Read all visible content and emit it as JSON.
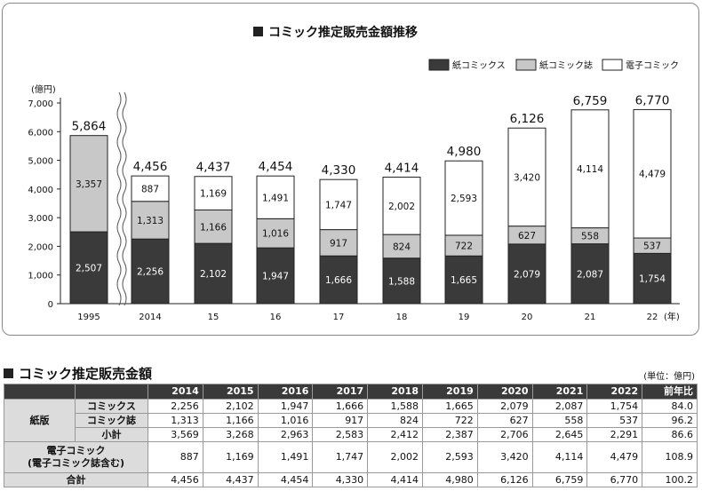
{
  "chart_data": {
    "type": "bar",
    "title": "コミック推定販売金額推移",
    "ylabel": "(億円)",
    "xlabel": "(年)",
    "ylim": [
      0,
      7000
    ],
    "yticks": [
      "0",
      "1,000",
      "2,000",
      "3,000",
      "4,000",
      "5,000",
      "6,000",
      "7,000"
    ],
    "categories": [
      "1995",
      "2014",
      "15",
      "16",
      "17",
      "18",
      "19",
      "20",
      "21",
      "22"
    ],
    "series": [
      {
        "name": "紙コミックス",
        "color": "#3a3a3a",
        "values": [
          2507,
          2256,
          2102,
          1947,
          1666,
          1588,
          1665,
          2079,
          2087,
          1754
        ],
        "labels": [
          "2,507",
          "2,256",
          "2,102",
          "1,947",
          "1,666",
          "1,588",
          "1,665",
          "2,079",
          "2,087",
          "1,754"
        ]
      },
      {
        "name": "紙コミック誌",
        "color": "#c8c8c8",
        "values": [
          3357,
          1313,
          1166,
          1016,
          917,
          824,
          722,
          627,
          558,
          537
        ],
        "labels": [
          "3,357",
          "1,313",
          "1,166",
          "1,016",
          "917",
          "824",
          "722",
          "627",
          "558",
          "537"
        ]
      },
      {
        "name": "電子コミック",
        "color": "#ffffff",
        "values": [
          0,
          887,
          1169,
          1491,
          1747,
          2002,
          2593,
          3420,
          4114,
          4479
        ],
        "labels": [
          "",
          "887",
          "1,169",
          "1,491",
          "1,747",
          "2,002",
          "2,593",
          "3,420",
          "4,114",
          "4,479"
        ]
      }
    ],
    "totals": [
      5864,
      4456,
      4437,
      4454,
      4330,
      4414,
      4980,
      6126,
      6759,
      6770
    ],
    "total_labels": [
      "5,864",
      "4,456",
      "4,437",
      "4,454",
      "4,330",
      "4,414",
      "4,980",
      "6,126",
      "6,759",
      "6,770"
    ],
    "legend_position": "top-right",
    "grid": false
  },
  "table": {
    "title": "コミック推定販売金額",
    "unit_note": "(単位：億円)",
    "headers": [
      "2014",
      "2015",
      "2016",
      "2017",
      "2018",
      "2019",
      "2020",
      "2021",
      "2022",
      "前年比"
    ],
    "group_label": "紙版",
    "rows": [
      {
        "label": "コミックス",
        "values": [
          "2,256",
          "2,102",
          "1,947",
          "1,666",
          "1,588",
          "1,665",
          "2,079",
          "2,087",
          "1,754",
          "84.0"
        ]
      },
      {
        "label": "コミック誌",
        "values": [
          "1,313",
          "1,166",
          "1,016",
          "917",
          "824",
          "722",
          "627",
          "558",
          "537",
          "96.2"
        ]
      },
      {
        "label": "小計",
        "values": [
          "3,569",
          "3,268",
          "2,963",
          "2,583",
          "2,412",
          "2,387",
          "2,706",
          "2,645",
          "2,291",
          "86.6"
        ]
      }
    ],
    "ecomic": {
      "label_line1": "電子コミック",
      "label_line2": "(電子コミック誌含む)",
      "values": [
        "887",
        "1,169",
        "1,491",
        "1,747",
        "2,002",
        "2,593",
        "3,420",
        "4,114",
        "4,479",
        "108.9"
      ]
    },
    "total": {
      "label": "合計",
      "values": [
        "4,456",
        "4,437",
        "4,454",
        "4,330",
        "4,414",
        "4,980",
        "6,126",
        "6,759",
        "6,770",
        "100.2"
      ]
    }
  }
}
